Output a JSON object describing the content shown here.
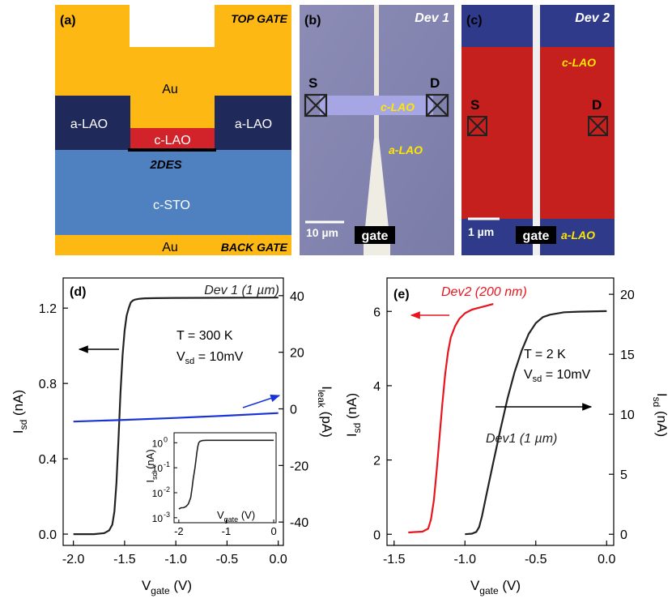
{
  "panel_a": {
    "label": "(a)",
    "top_gate": "TOP GATE",
    "back_gate": "BACK GATE",
    "au_top": "Au",
    "au_bottom": "Au",
    "a_lao_left": "a-LAO",
    "a_lao_right": "a-LAO",
    "c_lao": "c-LAO",
    "two_des": "2DES",
    "c_sto": "c-STO",
    "colors": {
      "gold": "#FDB813",
      "navy": "#1F2A5A",
      "red": "#D2232A",
      "blue": "#4F80C0"
    }
  },
  "panel_b": {
    "label": "(b)",
    "device": "Dev 1",
    "s": "S",
    "d": "D",
    "c_lao": "c-LAO",
    "a_lao": "a-LAO",
    "scale": "10 µm",
    "gate": "gate"
  },
  "panel_c": {
    "label": "(c)",
    "device": "Dev 2",
    "s": "S",
    "d": "D",
    "c_lao": "c-LAO",
    "a_lao": "a-LAO",
    "scale": "1 µm",
    "gate": "gate"
  },
  "chart_data": [
    {
      "id": "d",
      "type": "line",
      "panel_label": "(d)",
      "title": "Dev 1 (1 µm)",
      "annotations": [
        "T = 300 K",
        "V",
        "sd",
        " = 10mV"
      ],
      "xlabel": "V",
      "xlabel_sub": "gate",
      "xlabel_unit": " (V)",
      "ylabel": "I",
      "ylabel_sub": "sd",
      "ylabel_unit": " (nA)",
      "y2label": "I",
      "y2label_sub": "leak",
      "y2label_unit": " (pA)",
      "xlim": [
        -2.1,
        0.05
      ],
      "ylim": [
        -0.06,
        1.36
      ],
      "y2lim": [
        -48.25,
        46.25
      ],
      "xticks": [
        "-2.0",
        "-1.5",
        "-1.0",
        "-0.5",
        "0.0"
      ],
      "xtick_values": [
        -2.0,
        -1.5,
        -1.0,
        -0.5,
        0.0
      ],
      "yticks": [
        "0.0",
        "0.4",
        "0.8",
        "1.2"
      ],
      "ytick_values": [
        0.0,
        0.4,
        0.8,
        1.2
      ],
      "y2ticks": [
        "40",
        "20",
        "0",
        "-20",
        "-40"
      ],
      "y2tick_values": [
        40,
        20,
        0,
        -20,
        -40
      ],
      "series": [
        {
          "name": "I_sd",
          "axis": "left",
          "color": "#222222",
          "x": [
            -2.0,
            -1.8,
            -1.7,
            -1.65,
            -1.62,
            -1.6,
            -1.58,
            -1.56,
            -1.54,
            -1.52,
            -1.5,
            -1.48,
            -1.46,
            -1.44,
            -1.42,
            -1.4,
            -1.35,
            -1.3,
            -1.2,
            -1.0,
            -0.5,
            0.0
          ],
          "y": [
            0.0,
            0.0,
            0.005,
            0.02,
            0.05,
            0.12,
            0.27,
            0.5,
            0.75,
            0.95,
            1.08,
            1.16,
            1.2,
            1.23,
            1.24,
            1.245,
            1.25,
            1.252,
            1.253,
            1.254,
            1.255,
            1.256
          ]
        },
        {
          "name": "I_leak",
          "axis": "right",
          "color": "#1a32d8",
          "x": [
            -2.0,
            -1.5,
            -1.0,
            -0.5,
            0.0
          ],
          "y": [
            -4.5,
            -3.9,
            -3.2,
            -2.4,
            -1.5
          ]
        }
      ],
      "inset": {
        "ylabel": "I",
        "ylabel_sub": "sd",
        "ylabel_unit": " (nA)",
        "xlabel": "V",
        "xlabel_sub": "gate",
        "xlabel_unit": " (V)",
        "xticks": [
          "-2",
          "-1",
          "0"
        ],
        "xtick_values": [
          -2,
          -1,
          0
        ],
        "yticks_base": [
          "10",
          "10",
          "10",
          "10"
        ],
        "yticks_exp": [
          "0",
          "-1",
          "-2",
          "-3"
        ],
        "ytick_values": [
          0,
          -1,
          -2,
          -3
        ],
        "xlim": [
          -2.1,
          0.05
        ],
        "ylim": [
          -3.2,
          0.4
        ],
        "x": [
          -2.0,
          -1.95,
          -1.9,
          -1.85,
          -1.8,
          -1.75,
          -1.72,
          -1.7,
          -1.68,
          -1.66,
          -1.64,
          -1.62,
          -1.6,
          -1.58,
          -1.55,
          -1.5,
          -1.4,
          -1.0,
          0.0
        ],
        "y": [
          -2.65,
          -2.6,
          -2.6,
          -2.55,
          -2.45,
          -2.2,
          -1.8,
          -1.5,
          -1.25,
          -1.0,
          -0.7,
          -0.4,
          -0.15,
          0.0,
          0.06,
          0.09,
          0.1,
          0.1,
          0.1
        ]
      },
      "arrows": [
        {
          "direction": "left",
          "color": "#000000"
        },
        {
          "direction": "right",
          "color": "#1a32d8"
        }
      ]
    },
    {
      "id": "e",
      "type": "line",
      "panel_label": "(e)",
      "annotations": [
        "T = 2 K",
        "V",
        "sd",
        " = 10mV"
      ],
      "xlabel": "V",
      "xlabel_sub": "gate",
      "xlabel_unit": " (V)",
      "ylabel": "I",
      "ylabel_sub": "sd",
      "ylabel_unit": " (nA)",
      "y2label": "I",
      "y2label_sub": "sd",
      "y2label_unit": " (nA)",
      "xlim": [
        -1.55,
        0.05
      ],
      "ylim": [
        -0.3,
        6.9
      ],
      "y2lim": [
        -0.93,
        21.36
      ],
      "xticks": [
        "-1.5",
        "-1.0",
        "-0.5",
        "0.0"
      ],
      "xtick_values": [
        -1.5,
        -1.0,
        -0.5,
        0.0
      ],
      "yticks": [
        "0",
        "2",
        "4",
        "6"
      ],
      "ytick_values": [
        0,
        2,
        4,
        6
      ],
      "y2ticks": [
        "0",
        "5",
        "10",
        "15",
        "20"
      ],
      "y2tick_values": [
        0,
        5,
        10,
        15,
        20
      ],
      "series": [
        {
          "name": "Dev2 (200 nm)",
          "axis": "left",
          "color": "#e8141e",
          "x": [
            -1.4,
            -1.3,
            -1.26,
            -1.24,
            -1.22,
            -1.2,
            -1.18,
            -1.16,
            -1.14,
            -1.12,
            -1.1,
            -1.07,
            -1.04,
            -1.0,
            -0.95,
            -0.9,
            -0.85,
            -0.8
          ],
          "y": [
            0.05,
            0.07,
            0.15,
            0.4,
            0.9,
            1.7,
            2.6,
            3.5,
            4.3,
            4.9,
            5.3,
            5.6,
            5.8,
            5.95,
            6.05,
            6.1,
            6.15,
            6.2
          ]
        },
        {
          "name": "Dev1 (1 µm)",
          "axis": "right",
          "color": "#222222",
          "x": [
            -1.0,
            -0.95,
            -0.92,
            -0.9,
            -0.88,
            -0.85,
            -0.8,
            -0.75,
            -0.7,
            -0.65,
            -0.6,
            -0.55,
            -0.5,
            -0.45,
            -0.4,
            -0.3,
            -0.2,
            0.0
          ],
          "y": [
            0.0,
            0.05,
            0.2,
            0.6,
            1.5,
            3.2,
            6.0,
            8.7,
            11.3,
            13.5,
            15.3,
            16.7,
            17.6,
            18.1,
            18.3,
            18.5,
            18.55,
            18.6
          ]
        }
      ],
      "legend_labels": [
        "Dev2 (200 nm)",
        "Dev1 (1 µm)"
      ],
      "arrows": [
        {
          "direction": "left",
          "color": "#e8141e"
        },
        {
          "direction": "right",
          "color": "#000000"
        }
      ]
    }
  ]
}
